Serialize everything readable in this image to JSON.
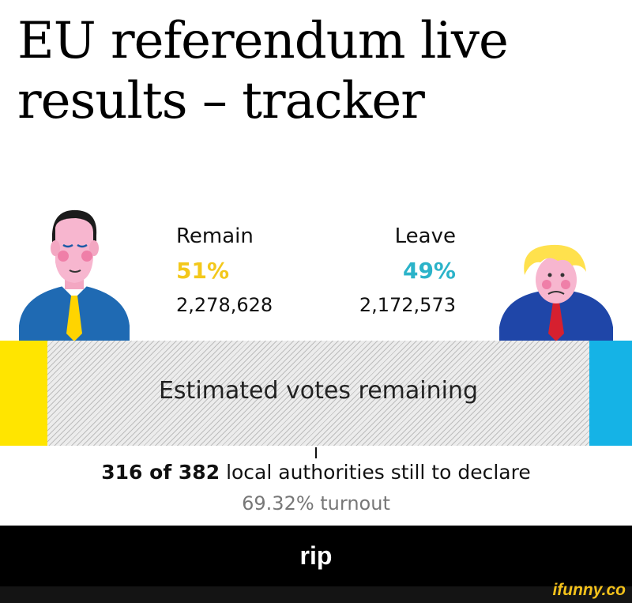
{
  "headline": {
    "line1": "EU referendum live",
    "line2": "results – tracker"
  },
  "remain": {
    "label": "Remain",
    "percent": "51%",
    "votes": "2,278,628",
    "color": "#f3c81b",
    "bar_color": "#ffe500",
    "bar_share": 0.075
  },
  "leave": {
    "label": "Leave",
    "percent": "49%",
    "votes": "2,172,573",
    "color": "#2bb3c9",
    "bar_color": "#15b3e6",
    "bar_share": 0.0675
  },
  "remaining": {
    "label": "Estimated votes remaining"
  },
  "declare": {
    "declared_bold": "316 of 382",
    "rest": "local authorities still to declare"
  },
  "turnout": "69.32% turnout",
  "footer": {
    "caption": "rip",
    "watermark": "ifunny.co"
  }
}
